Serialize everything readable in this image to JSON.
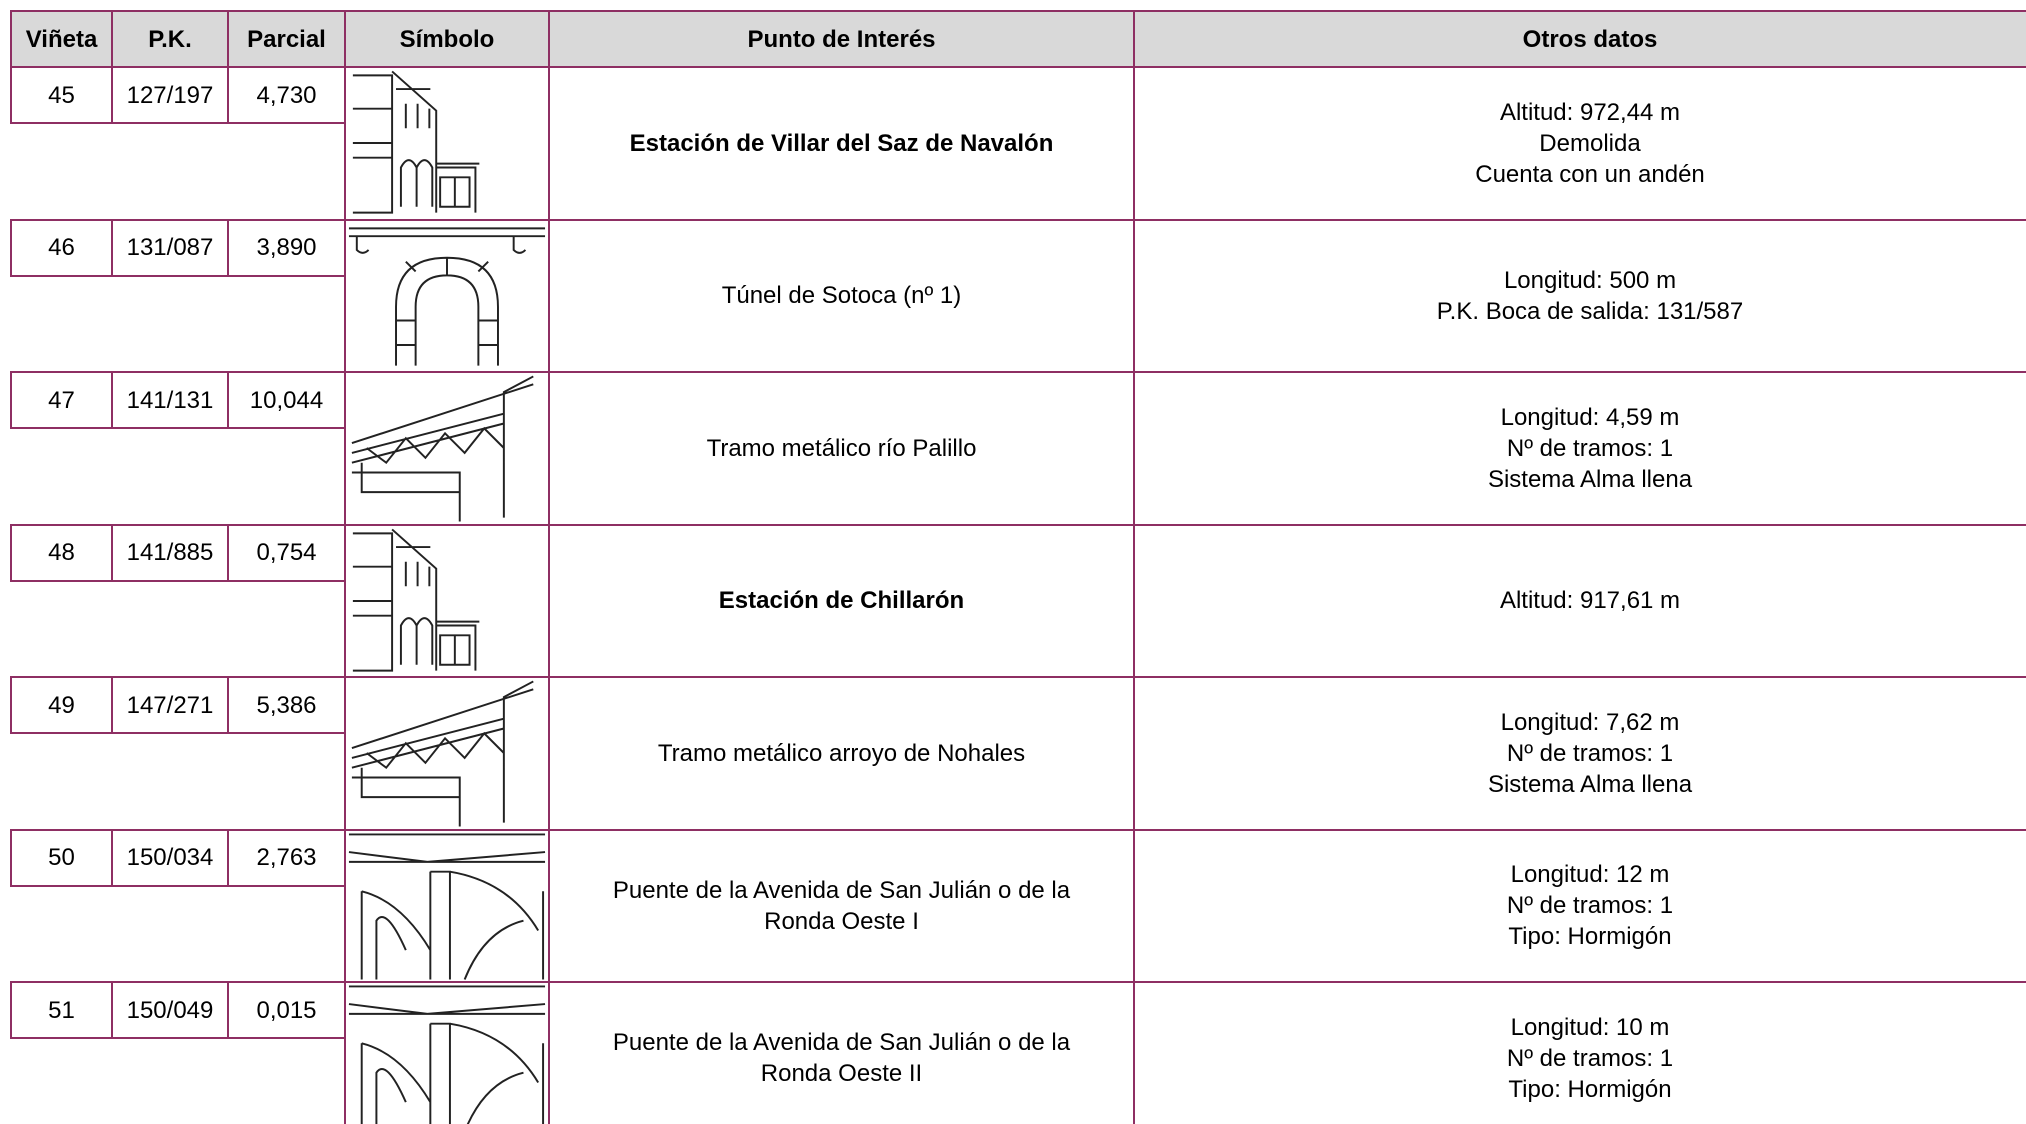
{
  "table": {
    "headers": [
      "Viñeta",
      "P.K.",
      "Parcial",
      "Símbolo",
      "Punto de Interés",
      "Otros datos"
    ],
    "rows": [
      {
        "vineta": "45",
        "pk": "127/197",
        "parcial": "4,730",
        "punto": "Estación de Villar del Saz de Navalón",
        "otros": [
          "Altitud: 972,44 m",
          "Demolida",
          "Cuenta con un andén"
        ]
      },
      {
        "vineta": "46",
        "pk": "131/087",
        "parcial": "3,890",
        "punto": "Túnel de Sotoca (nº 1)",
        "otros": [
          "Longitud: 500 m",
          "P.K. Boca de salida: 131/587"
        ]
      },
      {
        "vineta": "47",
        "pk": "141/131",
        "parcial": "10,044",
        "punto": "Tramo metálico río Palillo",
        "otros": [
          "Longitud: 4,59 m",
          "Nº de tramos: 1",
          "Sistema Alma llena"
        ]
      },
      {
        "vineta": "48",
        "pk": "141/885",
        "parcial": "0,754",
        "punto": "Estación de Chillarón",
        "otros": [
          "Altitud: 917,61 m"
        ]
      },
      {
        "vineta": "49",
        "pk": "147/271",
        "parcial": "5,386",
        "punto": "Tramo metálico arroyo de Nohales",
        "otros": [
          "Longitud: 7,62 m",
          "Nº de tramos: 1",
          "Sistema Alma llena"
        ]
      },
      {
        "vineta": "50",
        "pk": "150/034",
        "parcial": "2,763",
        "punto": "Puente de la Avenida de San Julián o de la Ronda Oeste I",
        "otros": [
          "Longitud: 12 m",
          "Nº de tramos: 1",
          "Tipo: Hormigón"
        ]
      },
      {
        "vineta": "51",
        "pk": "150/049",
        "parcial": "0,015",
        "punto": "Puente de la Avenida de San Julián o de la Ronda Oeste II",
        "otros": [
          "Longitud: 10 m",
          "Nº de tramos: 1",
          "Tipo: Hormigón"
        ]
      }
    ]
  }
}
